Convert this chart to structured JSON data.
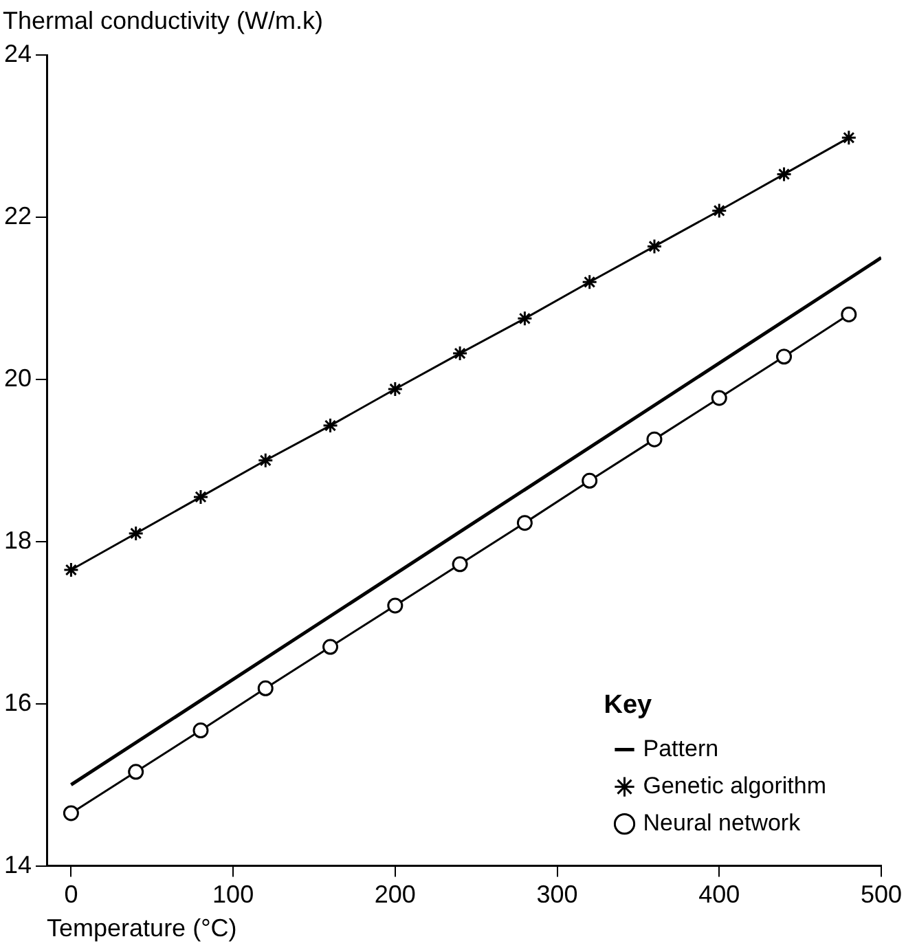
{
  "chart_data": {
    "type": "line",
    "xlabel": "Temperature (°C)",
    "ylabel": "Thermal conductivity (W/m.k)",
    "legend_title": "Key",
    "legend": "bottom right",
    "grid": false,
    "xlim": [
      -15,
      500
    ],
    "xticks": [
      0,
      100,
      200,
      300,
      400,
      500
    ],
    "ylim": [
      14,
      24
    ],
    "yticks": [
      14,
      16,
      18,
      20,
      22,
      24
    ],
    "series": [
      {
        "name": "Pattern",
        "color": "#000000",
        "marker": "none",
        "x": [
          0,
          500
        ],
        "values": [
          15.0,
          21.5
        ]
      },
      {
        "name": "Genetic algorithm",
        "color": "#000000",
        "marker": "cross",
        "x": [
          0,
          40,
          80,
          120,
          160,
          200,
          240,
          280,
          320,
          360,
          400,
          440,
          480
        ],
        "values": [
          17.65,
          18.1,
          18.55,
          19.0,
          19.43,
          19.88,
          20.32,
          20.75,
          21.2,
          21.64,
          22.08,
          22.53,
          22.98
        ]
      },
      {
        "name": "Neural network",
        "color": "#000000",
        "marker": "circle",
        "x": [
          0,
          40,
          80,
          120,
          160,
          200,
          240,
          280,
          320,
          360,
          400,
          440,
          480
        ],
        "values": [
          14.65,
          15.16,
          15.67,
          16.19,
          16.7,
          17.21,
          17.72,
          18.23,
          18.75,
          19.26,
          19.77,
          20.28,
          20.8
        ]
      }
    ]
  }
}
